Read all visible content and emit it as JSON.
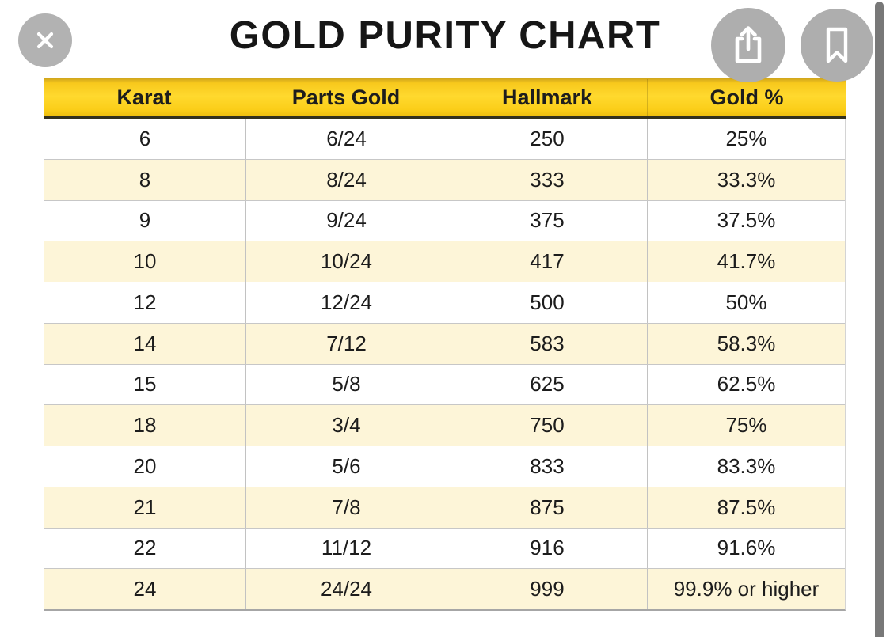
{
  "page": {
    "title": "GOLD PURITY CHART"
  },
  "toolbar": {
    "close_icon": "close-icon",
    "share_icon": "share-icon",
    "bookmark_icon": "bookmark-icon"
  },
  "table": {
    "headers": [
      "Karat",
      "Parts Gold",
      "Hallmark",
      "Gold %"
    ],
    "rows": [
      [
        "6",
        "6/24",
        "250",
        "25%"
      ],
      [
        "8",
        "8/24",
        "333",
        "33.3%"
      ],
      [
        "9",
        "9/24",
        "375",
        "37.5%"
      ],
      [
        "10",
        "10/24",
        "417",
        "41.7%"
      ],
      [
        "12",
        "12/24",
        "500",
        "50%"
      ],
      [
        "14",
        "7/12",
        "583",
        "58.3%"
      ],
      [
        "15",
        "5/8",
        "625",
        "62.5%"
      ],
      [
        "18",
        "3/4",
        "750",
        "75%"
      ],
      [
        "20",
        "5/6",
        "833",
        "83.3%"
      ],
      [
        "21",
        "7/8",
        "875",
        "87.5%"
      ],
      [
        "22",
        "11/12",
        "916",
        "91.6%"
      ],
      [
        "24",
        "24/24",
        "999",
        "99.9% or higher"
      ]
    ]
  },
  "chart_data": {
    "type": "table",
    "title": "GOLD PURITY CHART",
    "columns": [
      "Karat",
      "Parts Gold",
      "Hallmark",
      "Gold %"
    ],
    "rows": [
      [
        "6",
        "6/24",
        "250",
        "25%"
      ],
      [
        "8",
        "8/24",
        "333",
        "33.3%"
      ],
      [
        "9",
        "9/24",
        "375",
        "37.5%"
      ],
      [
        "10",
        "10/24",
        "417",
        "41.7%"
      ],
      [
        "12",
        "12/24",
        "500",
        "50%"
      ],
      [
        "14",
        "7/12",
        "583",
        "58.3%"
      ],
      [
        "15",
        "5/8",
        "625",
        "62.5%"
      ],
      [
        "18",
        "3/4",
        "750",
        "75%"
      ],
      [
        "20",
        "5/6",
        "833",
        "83.3%"
      ],
      [
        "21",
        "7/8",
        "875",
        "87.5%"
      ],
      [
        "22",
        "11/12",
        "916",
        "91.6%"
      ],
      [
        "24",
        "24/24",
        "999",
        "99.9% or higher"
      ]
    ]
  },
  "colors": {
    "header_yellow": "#ffd92e",
    "header_border": "#32301d",
    "row_cream": "#fdf5d8",
    "row_white": "#ffffff",
    "grid_line": "#c7c7c7",
    "circle_gray": "#aeaeae",
    "scrollbar_gray": "#787878",
    "text_black": "#1c1c1c"
  }
}
